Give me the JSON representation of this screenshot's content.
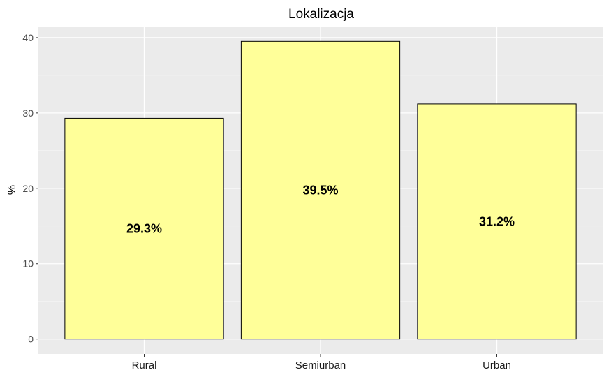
{
  "chart_data": {
    "type": "bar",
    "title": "Lokalizacja",
    "xlabel": "",
    "ylabel": "%",
    "categories": [
      "Rural",
      "Semiurban",
      "Urban"
    ],
    "values": [
      29.3,
      39.5,
      31.2
    ],
    "data_labels": [
      "29.3%",
      "39.5%",
      "31.2%"
    ],
    "y_ticks": [
      0,
      10,
      20,
      30,
      40
    ],
    "ylim": [
      -1.975,
      41.475
    ],
    "grid": true,
    "legend": "none",
    "colors": {
      "bar_fill": "#FFFF99",
      "bar_stroke": "#000000",
      "panel_background": "#EBEBEB",
      "grid_major": "#FFFFFF",
      "grid_minor": "#F5F5F5"
    }
  }
}
